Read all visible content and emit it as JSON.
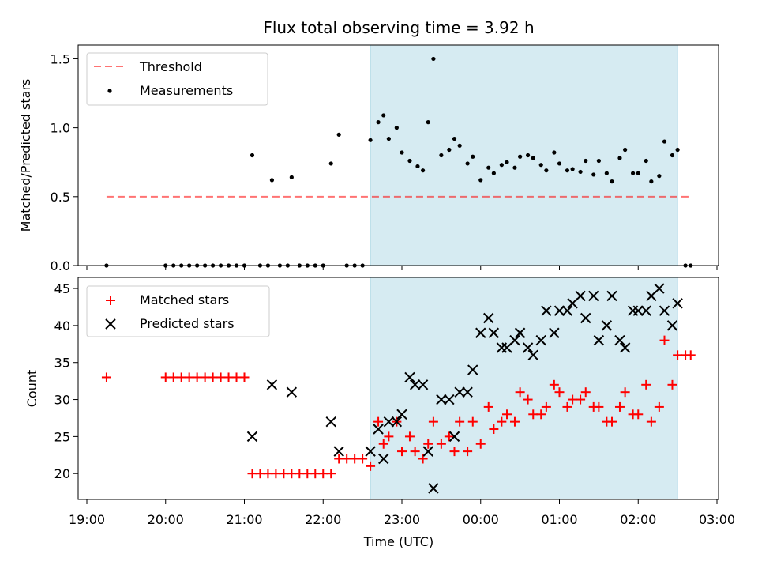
{
  "title": "Flux total observing time = 3.92 h",
  "colors": {
    "highlight": "#add8e6",
    "threshold": "#ff0000",
    "measurements": "#000000",
    "matched": "#ff0000",
    "predicted": "#000000"
  },
  "chart_data": [
    {
      "type": "scatter",
      "ylabel": "Matched/Predicted stars",
      "ylim": [
        0,
        1.6
      ],
      "yticks": [
        0,
        0.5,
        1.0,
        1.5
      ],
      "ytick_labels": [
        "0.0",
        "0.5",
        "1.0",
        "1.5"
      ],
      "x_range": [
        "19:00",
        "03:00"
      ],
      "highlight_span": [
        "22:36",
        "02:30"
      ],
      "legend": {
        "position": "top-left",
        "threshold": "Threshold",
        "measurements": "Measurements"
      },
      "threshold": {
        "value": 0.5,
        "x_range": [
          "19:15",
          "02:40"
        ],
        "style": "dashed"
      },
      "measurements": [
        [
          "19:15",
          0.0
        ],
        [
          "20:00",
          0.0
        ],
        [
          "20:06",
          0.0
        ],
        [
          "20:12",
          0.0
        ],
        [
          "20:18",
          0.0
        ],
        [
          "20:24",
          0.0
        ],
        [
          "20:30",
          0.0
        ],
        [
          "20:36",
          0.0
        ],
        [
          "20:42",
          0.0
        ],
        [
          "20:48",
          0.0
        ],
        [
          "20:54",
          0.0
        ],
        [
          "21:00",
          0.0
        ],
        [
          "21:06",
          0.8
        ],
        [
          "21:12",
          0.0
        ],
        [
          "21:18",
          0.0
        ],
        [
          "21:21",
          0.62
        ],
        [
          "21:27",
          0.0
        ],
        [
          "21:33",
          0.0
        ],
        [
          "21:36",
          0.64
        ],
        [
          "21:42",
          0.0
        ],
        [
          "21:48",
          0.0
        ],
        [
          "21:54",
          0.0
        ],
        [
          "22:00",
          0.0
        ],
        [
          "22:06",
          0.74
        ],
        [
          "22:12",
          0.95
        ],
        [
          "22:18",
          0.0
        ],
        [
          "22:24",
          0.0
        ],
        [
          "22:30",
          0.0
        ],
        [
          "22:36",
          0.91
        ],
        [
          "22:42",
          1.04
        ],
        [
          "22:46",
          1.09
        ],
        [
          "22:50",
          0.92
        ],
        [
          "22:56",
          1.0
        ],
        [
          "23:00",
          0.82
        ],
        [
          "23:06",
          0.76
        ],
        [
          "23:12",
          0.72
        ],
        [
          "23:16",
          0.69
        ],
        [
          "23:20",
          1.04
        ],
        [
          "23:24",
          1.5
        ],
        [
          "23:30",
          0.8
        ],
        [
          "23:36",
          0.84
        ],
        [
          "23:40",
          0.92
        ],
        [
          "23:44",
          0.87
        ],
        [
          "23:50",
          0.74
        ],
        [
          "23:54",
          0.79
        ],
        [
          "00:00",
          0.62
        ],
        [
          "00:06",
          0.71
        ],
        [
          "00:10",
          0.67
        ],
        [
          "00:16",
          0.73
        ],
        [
          "00:20",
          0.75
        ],
        [
          "00:26",
          0.71
        ],
        [
          "00:30",
          0.79
        ],
        [
          "00:36",
          0.8
        ],
        [
          "00:40",
          0.78
        ],
        [
          "00:46",
          0.73
        ],
        [
          "00:50",
          0.69
        ],
        [
          "00:56",
          0.82
        ],
        [
          "01:00",
          0.74
        ],
        [
          "01:06",
          0.69
        ],
        [
          "01:10",
          0.7
        ],
        [
          "01:16",
          0.68
        ],
        [
          "01:20",
          0.76
        ],
        [
          "01:26",
          0.66
        ],
        [
          "01:30",
          0.76
        ],
        [
          "01:36",
          0.67
        ],
        [
          "01:40",
          0.61
        ],
        [
          "01:46",
          0.78
        ],
        [
          "01:50",
          0.84
        ],
        [
          "01:56",
          0.67
        ],
        [
          "02:00",
          0.67
        ],
        [
          "02:06",
          0.76
        ],
        [
          "02:10",
          0.61
        ],
        [
          "02:16",
          0.65
        ],
        [
          "02:20",
          0.9
        ],
        [
          "02:26",
          0.8
        ],
        [
          "02:30",
          0.84
        ],
        [
          "02:36",
          0.0
        ],
        [
          "02:40",
          0.0
        ]
      ]
    },
    {
      "type": "scatter",
      "xlabel": "Time (UTC)",
      "ylabel": "Count",
      "ylim": [
        16.5,
        46.5
      ],
      "yticks": [
        20,
        25,
        30,
        35,
        40,
        45
      ],
      "ytick_labels": [
        "20",
        "25",
        "30",
        "35",
        "40",
        "45"
      ],
      "xticks": [
        "19:00",
        "20:00",
        "21:00",
        "22:00",
        "23:00",
        "00:00",
        "01:00",
        "02:00",
        "03:00"
      ],
      "xtick_labels": [
        "19:00",
        "20:00",
        "21:00",
        "22:00",
        "23:00",
        "00:00",
        "01:00",
        "02:00",
        "03:00"
      ],
      "highlight_span": [
        "22:36",
        "02:30"
      ],
      "legend": {
        "position": "top-left",
        "matched": "Matched stars",
        "predicted": "Predicted stars"
      },
      "matched": [
        [
          "19:15",
          33
        ],
        [
          "20:00",
          33
        ],
        [
          "20:06",
          33
        ],
        [
          "20:12",
          33
        ],
        [
          "20:18",
          33
        ],
        [
          "20:24",
          33
        ],
        [
          "20:30",
          33
        ],
        [
          "20:36",
          33
        ],
        [
          "20:42",
          33
        ],
        [
          "20:48",
          33
        ],
        [
          "20:54",
          33
        ],
        [
          "21:00",
          33
        ],
        [
          "21:06",
          20
        ],
        [
          "21:12",
          20
        ],
        [
          "21:18",
          20
        ],
        [
          "21:24",
          20
        ],
        [
          "21:30",
          20
        ],
        [
          "21:36",
          20
        ],
        [
          "21:42",
          20
        ],
        [
          "21:48",
          20
        ],
        [
          "21:54",
          20
        ],
        [
          "22:00",
          20
        ],
        [
          "22:06",
          20
        ],
        [
          "22:12",
          22
        ],
        [
          "22:18",
          22
        ],
        [
          "22:24",
          22
        ],
        [
          "22:30",
          22
        ],
        [
          "22:36",
          21
        ],
        [
          "22:42",
          27
        ],
        [
          "22:46",
          24
        ],
        [
          "22:50",
          25
        ],
        [
          "22:56",
          27
        ],
        [
          "23:00",
          23
        ],
        [
          "23:06",
          25
        ],
        [
          "23:10",
          23
        ],
        [
          "23:16",
          22
        ],
        [
          "23:20",
          24
        ],
        [
          "23:24",
          27
        ],
        [
          "23:30",
          24
        ],
        [
          "23:36",
          25
        ],
        [
          "23:40",
          23
        ],
        [
          "23:44",
          27
        ],
        [
          "23:50",
          23
        ],
        [
          "23:54",
          27
        ],
        [
          "00:00",
          24
        ],
        [
          "00:06",
          29
        ],
        [
          "00:10",
          26
        ],
        [
          "00:16",
          27
        ],
        [
          "00:20",
          28
        ],
        [
          "00:26",
          27
        ],
        [
          "00:30",
          31
        ],
        [
          "00:36",
          30
        ],
        [
          "00:40",
          28
        ],
        [
          "00:46",
          28
        ],
        [
          "00:50",
          29
        ],
        [
          "00:56",
          32
        ],
        [
          "01:00",
          31
        ],
        [
          "01:06",
          29
        ],
        [
          "01:10",
          30
        ],
        [
          "01:16",
          30
        ],
        [
          "01:20",
          31
        ],
        [
          "01:26",
          29
        ],
        [
          "01:30",
          29
        ],
        [
          "01:36",
          27
        ],
        [
          "01:40",
          27
        ],
        [
          "01:46",
          29
        ],
        [
          "01:50",
          31
        ],
        [
          "01:56",
          28
        ],
        [
          "02:00",
          28
        ],
        [
          "02:06",
          32
        ],
        [
          "02:10",
          27
        ],
        [
          "02:16",
          29
        ],
        [
          "02:20",
          38
        ],
        [
          "02:26",
          32
        ],
        [
          "02:30",
          36
        ],
        [
          "02:36",
          36
        ],
        [
          "02:40",
          36
        ]
      ],
      "predicted": [
        [
          "21:06",
          25
        ],
        [
          "21:21",
          32
        ],
        [
          "21:36",
          31
        ],
        [
          "22:06",
          27
        ],
        [
          "22:12",
          23
        ],
        [
          "22:36",
          23
        ],
        [
          "22:42",
          26
        ],
        [
          "22:46",
          22
        ],
        [
          "22:50",
          27
        ],
        [
          "22:56",
          27
        ],
        [
          "23:00",
          28
        ],
        [
          "23:06",
          33
        ],
        [
          "23:10",
          32
        ],
        [
          "23:16",
          32
        ],
        [
          "23:20",
          23
        ],
        [
          "23:24",
          18
        ],
        [
          "23:30",
          30
        ],
        [
          "23:36",
          30
        ],
        [
          "23:40",
          25
        ],
        [
          "23:44",
          31
        ],
        [
          "23:50",
          31
        ],
        [
          "23:54",
          34
        ],
        [
          "00:00",
          39
        ],
        [
          "00:06",
          41
        ],
        [
          "00:10",
          39
        ],
        [
          "00:16",
          37
        ],
        [
          "00:20",
          37
        ],
        [
          "00:26",
          38
        ],
        [
          "00:30",
          39
        ],
        [
          "00:36",
          37
        ],
        [
          "00:40",
          36
        ],
        [
          "00:46",
          38
        ],
        [
          "00:50",
          42
        ],
        [
          "00:56",
          39
        ],
        [
          "01:00",
          42
        ],
        [
          "01:06",
          42
        ],
        [
          "01:10",
          43
        ],
        [
          "01:16",
          44
        ],
        [
          "01:20",
          41
        ],
        [
          "01:26",
          44
        ],
        [
          "01:30",
          38
        ],
        [
          "01:36",
          40
        ],
        [
          "01:40",
          44
        ],
        [
          "01:46",
          38
        ],
        [
          "01:50",
          37
        ],
        [
          "01:56",
          42
        ],
        [
          "02:00",
          42
        ],
        [
          "02:06",
          42
        ],
        [
          "02:10",
          44
        ],
        [
          "02:16",
          45
        ],
        [
          "02:20",
          42
        ],
        [
          "02:26",
          40
        ],
        [
          "02:30",
          43
        ]
      ]
    }
  ]
}
